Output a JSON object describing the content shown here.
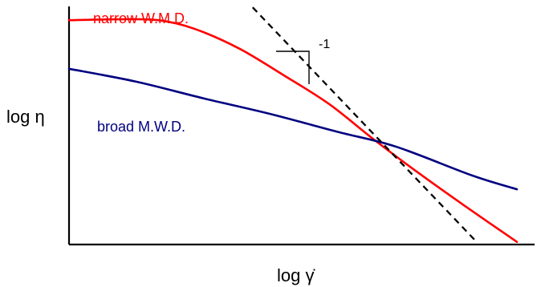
{
  "chart_data": {
    "type": "line",
    "title": "",
    "xlabel": "log γ̇",
    "ylabel": "log η",
    "xscale": "log",
    "yscale": "log",
    "grid": false,
    "legend": "inline-labels",
    "axis_ticks": "none",
    "series": [
      {
        "name": "narrow W.M.D.",
        "color": "#ff0000",
        "x": [
          0.0,
          0.11,
          0.2,
          0.28,
          0.38,
          0.48,
          0.58,
          0.68,
          0.78,
          0.88,
          1.0
        ],
        "y": [
          0.942,
          0.946,
          0.942,
          0.906,
          0.823,
          0.71,
          0.591,
          0.442,
          0.301,
          0.167,
          0.011
        ]
      },
      {
        "name": "broad M.W.D.",
        "color": "#000080",
        "x": [
          0.0,
          0.15,
          0.3,
          0.45,
          0.6,
          0.73,
          0.9,
          1.0
        ],
        "y": [
          0.738,
          0.684,
          0.614,
          0.548,
          0.473,
          0.411,
          0.29,
          0.232
        ]
      }
    ],
    "reference_line": {
      "style": "dashed",
      "color": "#000000",
      "slope_label": "-1",
      "x": [
        0.41,
        0.91
      ],
      "y": [
        0.996,
        0.011
      ]
    }
  }
}
